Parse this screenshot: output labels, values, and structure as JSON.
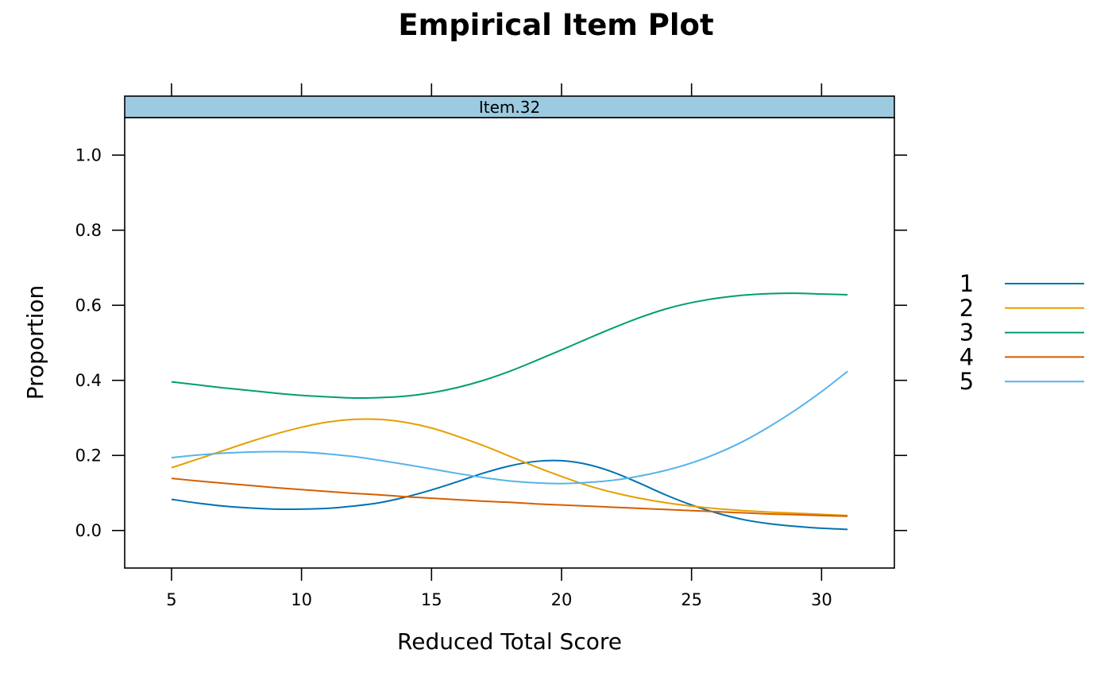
{
  "chart_data": {
    "type": "line",
    "title": "Empirical Item Plot",
    "xlabel": "Reduced Total Score",
    "ylabel": "Proportion",
    "panel": "Item.32",
    "xlim": [
      3.2,
      32.8
    ],
    "ylim": [
      -0.1,
      1.1
    ],
    "x_ticks": [
      5,
      10,
      15,
      20,
      25,
      30
    ],
    "y_ticks": [
      0.0,
      0.2,
      0.4,
      0.6,
      0.8,
      1.0
    ],
    "y_tick_labels": [
      "0.0",
      "0.2",
      "0.4",
      "0.6",
      "0.8",
      "1.0"
    ],
    "legend_position": "right",
    "strip_color": "#9ccbe1",
    "x": [
      5,
      6,
      7,
      8,
      9,
      10,
      11,
      12,
      13,
      14,
      15,
      16,
      17,
      18,
      19,
      20,
      21,
      22,
      23,
      24,
      25,
      26,
      27,
      28,
      29,
      30,
      31
    ],
    "series": [
      {
        "name": "1",
        "color": "#0072b2",
        "values": [
          0.083,
          0.073,
          0.065,
          0.06,
          0.057,
          0.057,
          0.059,
          0.065,
          0.074,
          0.089,
          0.108,
          0.13,
          0.153,
          0.172,
          0.184,
          0.186,
          0.176,
          0.155,
          0.126,
          0.095,
          0.068,
          0.046,
          0.029,
          0.018,
          0.011,
          0.006,
          0.003
        ]
      },
      {
        "name": "2",
        "color": "#e69f00",
        "values": [
          0.167,
          0.19,
          0.213,
          0.236,
          0.257,
          0.275,
          0.289,
          0.296,
          0.296,
          0.288,
          0.273,
          0.251,
          0.226,
          0.198,
          0.17,
          0.144,
          0.12,
          0.101,
          0.086,
          0.074,
          0.065,
          0.058,
          0.053,
          0.049,
          0.046,
          0.043,
          0.04
        ]
      },
      {
        "name": "3",
        "color": "#009e73",
        "values": [
          0.396,
          0.388,
          0.38,
          0.373,
          0.366,
          0.36,
          0.356,
          0.353,
          0.354,
          0.358,
          0.367,
          0.381,
          0.4,
          0.424,
          0.452,
          0.481,
          0.511,
          0.54,
          0.567,
          0.59,
          0.607,
          0.619,
          0.627,
          0.631,
          0.632,
          0.63,
          0.628
        ]
      },
      {
        "name": "4",
        "color": "#d55e00",
        "values": [
          0.139,
          0.132,
          0.126,
          0.12,
          0.114,
          0.109,
          0.104,
          0.099,
          0.095,
          0.09,
          0.086,
          0.082,
          0.078,
          0.075,
          0.071,
          0.068,
          0.065,
          0.062,
          0.059,
          0.056,
          0.053,
          0.05,
          0.047,
          0.044,
          0.042,
          0.04,
          0.038
        ]
      },
      {
        "name": "5",
        "color": "#56b4e9",
        "values": [
          0.194,
          0.201,
          0.206,
          0.209,
          0.21,
          0.209,
          0.204,
          0.197,
          0.187,
          0.176,
          0.164,
          0.152,
          0.141,
          0.132,
          0.127,
          0.125,
          0.128,
          0.134,
          0.145,
          0.16,
          0.18,
          0.206,
          0.238,
          0.277,
          0.321,
          0.37,
          0.424
        ]
      }
    ]
  }
}
